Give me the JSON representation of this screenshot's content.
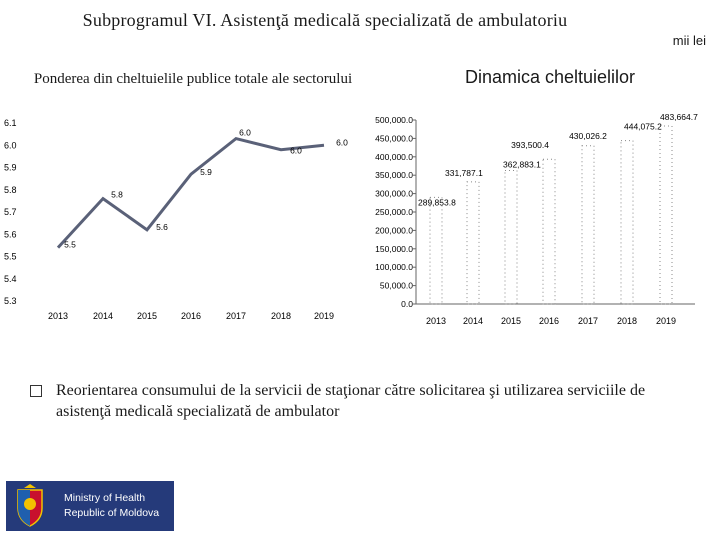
{
  "header": {
    "title": "Subprogramul VI. Asistenţă medicală specializată de ambulatoriu",
    "unit": "mii lei"
  },
  "chart_data": [
    {
      "type": "line",
      "title": "Ponderea din cheltuielile publice totale ale sectorului",
      "categories": [
        "2013",
        "2014",
        "2015",
        "2016",
        "2017",
        "2018",
        "2019"
      ],
      "values": [
        5.54,
        5.76,
        5.62,
        5.87,
        6.03,
        5.98,
        6.0
      ],
      "point_labels": [
        "5.5",
        "5.8",
        "5.6",
        "5.9",
        "6.0",
        "6.0",
        "6.0"
      ],
      "yticks": [
        "6.1",
        "6.0",
        "5.9",
        "5.8",
        "5.7",
        "5.6",
        "5.5",
        "5.4",
        "5.3"
      ],
      "ylim": [
        5.3,
        6.1
      ],
      "color": "#5a6178"
    },
    {
      "type": "bar",
      "title": "Dinamica cheltuielilor",
      "categories": [
        "2013",
        "2014",
        "2015",
        "2016",
        "2017",
        "2018",
        "2019"
      ],
      "values": [
        289853.8,
        331787.1,
        362883.1,
        393500.4,
        430026.2,
        444075.2,
        483664.7
      ],
      "value_labels": [
        "289,853.8",
        "331,787.1",
        "362,883.1",
        "393,500.4",
        "430,026.2",
        "444,075.2",
        "483,664.7"
      ],
      "yticks": [
        "500,000.0",
        "450,000.0",
        "400,000.0",
        "350,000.0",
        "300,000.0",
        "250,000.0",
        "200,000.0",
        "150,000.0",
        "100,000.0",
        "50,000.0",
        "0.0"
      ],
      "ylim": [
        0,
        500000
      ]
    }
  ],
  "bullet": {
    "text": "Reorientarea consumului de la servicii de staţionar către solicitarea şi utilizarea serviciile de asistenţă medicală specializată de ambulator"
  },
  "logo": {
    "line1": "Ministry of Health",
    "line2": "Republic of Moldova",
    "color": "#253a7a"
  }
}
